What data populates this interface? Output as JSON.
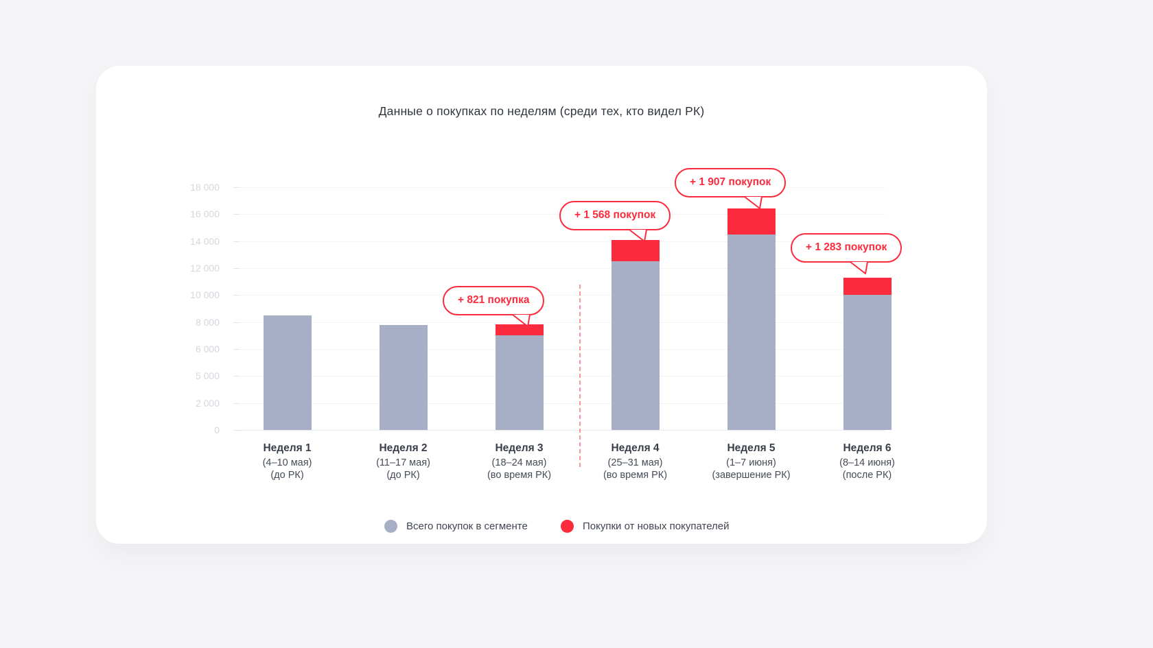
{
  "title": "Данные о покупках по неделям (среди тех, кто видел РК)",
  "colors": {
    "background": "#F5F5F7",
    "card": "#FFFFFF",
    "bar_total": "#A7AFC6",
    "bar_new": "#FB2B3D",
    "separator": "rgba(251,43,61,0.5)",
    "axis_label": "#D4D7DD"
  },
  "weeks": [
    {
      "name": "Неделя 1",
      "dates": "(4–10 мая)",
      "phase": "(до РК)",
      "callout": null
    },
    {
      "name": "Неделя 2",
      "dates": "(11–17 мая)",
      "phase": "(до РК)",
      "callout": null
    },
    {
      "name": "Неделя 3",
      "dates": "(18–24 мая)",
      "phase": "(во время РК)",
      "callout": "+ 821 покупка"
    },
    {
      "name": "Неделя 4",
      "dates": "(25–31 мая)",
      "phase": "(во время РК)",
      "callout": "+ 1 568 покупок"
    },
    {
      "name": "Неделя 5",
      "dates": "(1–7 июня)",
      "phase": "(завершение РК)",
      "callout": "+ 1 907 покупок"
    },
    {
      "name": "Неделя 6",
      "dates": "(8–14 июня)",
      "phase": "(после РК)",
      "callout": "+ 1 283 покупок"
    }
  ],
  "legend": [
    {
      "label": "Всего покупок в сегменте",
      "color": "#A7AFC6"
    },
    {
      "label": "Покупки от новых покупателей",
      "color": "#FB2B3D"
    }
  ],
  "chart_data": {
    "type": "bar",
    "stacked": true,
    "title": "Данные о покупках по неделям (среди тех, кто видел РК)",
    "categories": [
      "Неделя 1 (4–10 мая) (до РК)",
      "Неделя 2 (11–17 мая) (до РК)",
      "Неделя 3 (18–24 мая) (во время РК)",
      "Неделя 4 (25–31 мая) (во время РК)",
      "Неделя 5 (1–7 июня) (завершение РК)",
      "Неделя 6 (8–14 июня) (после РК)"
    ],
    "series": [
      {
        "name": "Всего покупок в сегменте",
        "values": [
          8500,
          7800,
          7000,
          12500,
          14500,
          10000
        ],
        "color": "#A7AFC6"
      },
      {
        "name": "Покупки от новых покупателей",
        "values": [
          0,
          0,
          821,
          1568,
          1907,
          1283
        ],
        "color": "#FB2B3D"
      }
    ],
    "annotations": [
      "+ 821 покупка",
      "+ 1 568 покупок",
      "+ 1 907 покупок",
      "+ 1 283 покупок"
    ],
    "xlabel": "",
    "ylabel": "",
    "ylim": [
      0,
      18000
    ],
    "y_ticks": [
      "18 000",
      "16 000",
      "14 000",
      "12 000",
      "10 000",
      "8 000",
      "6 000",
      "5 000",
      "2 000",
      "0"
    ],
    "grid": true,
    "legend_position": "bottom",
    "separator_line": {
      "position": "между Неделя 3 и Неделя 4",
      "style": "dashed",
      "color": "red"
    }
  }
}
